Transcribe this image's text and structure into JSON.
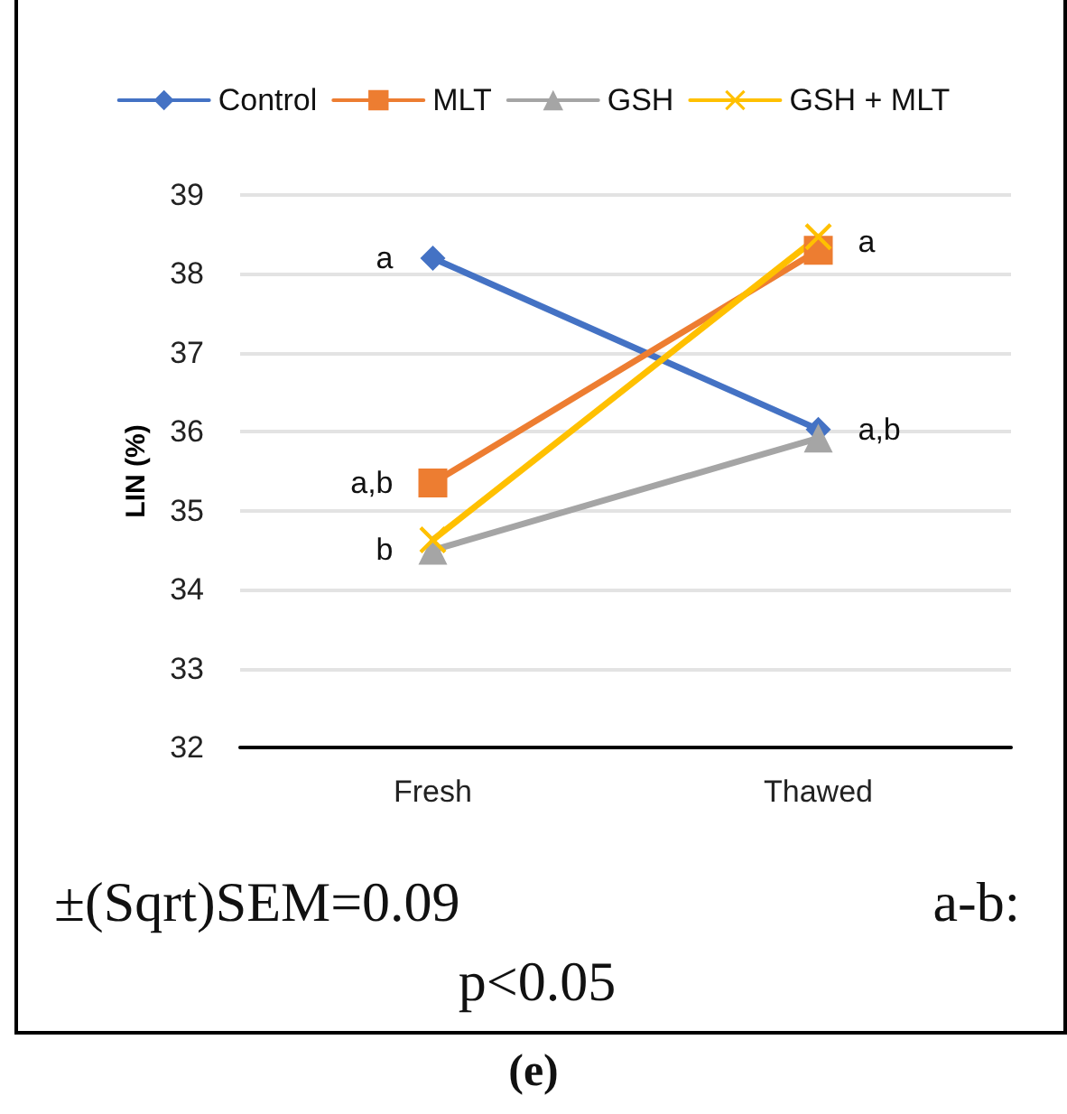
{
  "chart_data": {
    "type": "line",
    "ylabel": "LIN (%)",
    "categories": [
      "Fresh",
      "Thawed"
    ],
    "series": [
      {
        "name": "Control",
        "color": "#4472c4",
        "marker": "diamond",
        "values": [
          38.2,
          36.03
        ]
      },
      {
        "name": "MLT",
        "color": "#ed7d31",
        "marker": "square",
        "values": [
          35.35,
          38.3
        ]
      },
      {
        "name": "GSH",
        "color": "#a5a5a5",
        "marker": "triangle",
        "values": [
          34.5,
          35.92
        ]
      },
      {
        "name": "GSH + MLT",
        "color": "#ffc000",
        "marker": "cross",
        "values": [
          34.63,
          38.47
        ]
      }
    ],
    "ylim": [
      32,
      39
    ],
    "yticks": [
      32,
      33,
      34,
      35,
      36,
      37,
      38,
      39
    ],
    "grid": "y",
    "legend": "top",
    "line_style": "solid",
    "annotations": [
      {
        "text": "a",
        "x": "Fresh",
        "y": 38.2
      },
      {
        "text": "a,b",
        "x": "Fresh",
        "y": 35.35
      },
      {
        "text": "b",
        "x": "Fresh",
        "y": 34.5
      },
      {
        "text": "a",
        "x": "Thawed",
        "y": 38.4
      },
      {
        "text": "a,b",
        "x": "Thawed",
        "y": 36.03
      },
      "±(Sqrt)SEM=0.09 a-b: p<0.05",
      "(e)"
    ]
  }
}
